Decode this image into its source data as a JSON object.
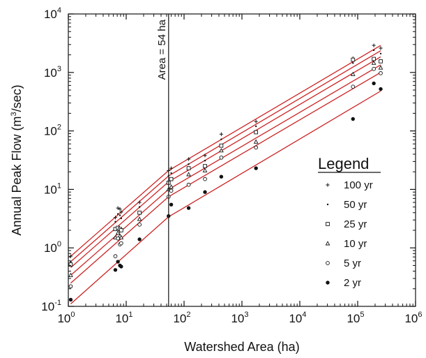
{
  "chart_data": {
    "type": "scatter",
    "xlabel": "Watershed Area (ha)",
    "ylabel_main": "Annual Peak Flow (m",
    "ylabel_sup": "3",
    "ylabel_end": "/sec)",
    "xscale": "log",
    "yscale": "log",
    "xlim": [
      1,
      1000000
    ],
    "ylim": [
      0.1,
      10000
    ],
    "x_ticks": [
      {
        "base": "10",
        "exp": "0"
      },
      {
        "base": "10",
        "exp": "1"
      },
      {
        "base": "10",
        "exp": "2"
      },
      {
        "base": "10",
        "exp": "3"
      },
      {
        "base": "10",
        "exp": "4"
      },
      {
        "base": "10",
        "exp": "5"
      },
      {
        "base": "10",
        "exp": "6"
      }
    ],
    "y_ticks": [
      {
        "base": "10",
        "exp": "-1"
      },
      {
        "base": "10",
        "exp": "0"
      },
      {
        "base": "10",
        "exp": "1"
      },
      {
        "base": "10",
        "exp": "2"
      },
      {
        "base": "10",
        "exp": "3"
      },
      {
        "base": "10",
        "exp": "4"
      }
    ],
    "grid": false,
    "reference_line": {
      "x": 54,
      "label": "Area = 54 ha"
    },
    "legend": {
      "title": "Legend",
      "position": "right"
    },
    "fit_color": "#cc2222",
    "series": [
      {
        "name": "100 yr",
        "marker": "plus",
        "fit": [
          [
            1.1,
            0.72
          ],
          [
            54,
            21
          ],
          [
            250000,
            2900
          ]
        ],
        "points": [
          [
            1.1,
            0.72
          ],
          [
            6.5,
            3.3
          ],
          [
            7.2,
            4.8
          ],
          [
            7.8,
            4.6
          ],
          [
            8.2,
            4.1
          ],
          [
            17,
            6.0
          ],
          [
            54,
            21
          ],
          [
            60,
            23
          ],
          [
            120,
            33
          ],
          [
            230,
            38
          ],
          [
            440,
            88
          ],
          [
            1750,
            145
          ],
          [
            83000,
            1750
          ],
          [
            190000,
            2900
          ],
          [
            250000,
            2600
          ]
        ]
      },
      {
        "name": "50 yr",
        "marker": "dot-small",
        "fit": [
          [
            1.1,
            0.58
          ],
          [
            54,
            17
          ],
          [
            250000,
            2350
          ]
        ],
        "points": [
          [
            1.1,
            0.58
          ],
          [
            6.5,
            2.8
          ],
          [
            7.2,
            3.8
          ],
          [
            7.8,
            3.6
          ],
          [
            8.2,
            3.2
          ],
          [
            17,
            5.0
          ],
          [
            54,
            17
          ],
          [
            60,
            19
          ],
          [
            120,
            27
          ],
          [
            230,
            31
          ],
          [
            440,
            72
          ],
          [
            1750,
            120
          ],
          [
            83000,
            1450
          ],
          [
            190000,
            2400
          ],
          [
            250000,
            2100
          ]
        ]
      },
      {
        "name": "25 yr",
        "marker": "square",
        "fit": [
          [
            1.1,
            0.46
          ],
          [
            54,
            13.5
          ],
          [
            250000,
            1850
          ]
        ],
        "points": [
          [
            1.1,
            0.52
          ],
          [
            6.5,
            2.1
          ],
          [
            7.2,
            2.2
          ],
          [
            7.8,
            2.1
          ],
          [
            8.2,
            2.0
          ],
          [
            17,
            4.0
          ],
          [
            54,
            13
          ],
          [
            60,
            15
          ],
          [
            120,
            23
          ],
          [
            230,
            25
          ],
          [
            440,
            56
          ],
          [
            1750,
            95
          ],
          [
            83000,
            1650
          ],
          [
            190000,
            1700
          ],
          [
            250000,
            1550
          ]
        ]
      },
      {
        "name": "10 yr",
        "marker": "triangle",
        "fit": [
          [
            1.1,
            0.34
          ],
          [
            54,
            10
          ],
          [
            250000,
            1350
          ]
        ],
        "points": [
          [
            1.1,
            0.34
          ],
          [
            6.5,
            1.5
          ],
          [
            7.2,
            1.8
          ],
          [
            7.8,
            1.6
          ],
          [
            8.2,
            1.5
          ],
          [
            17,
            3.1
          ],
          [
            54,
            10
          ],
          [
            60,
            11
          ],
          [
            120,
            18
          ],
          [
            230,
            21
          ],
          [
            440,
            46
          ],
          [
            1750,
            65
          ],
          [
            83000,
            930
          ],
          [
            190000,
            1450
          ],
          [
            250000,
            1200
          ]
        ]
      },
      {
        "name": "5 yr",
        "marker": "circle",
        "fit": [
          [
            1.1,
            0.25
          ],
          [
            54,
            7.5
          ],
          [
            250000,
            1000
          ]
        ],
        "points": [
          [
            1.1,
            0.22
          ],
          [
            6.5,
            0.72
          ],
          [
            7.2,
            1.45
          ],
          [
            7.8,
            1.15
          ],
          [
            8.2,
            1.2
          ],
          [
            17,
            2.5
          ],
          [
            54,
            7.5
          ],
          [
            60,
            9.5
          ],
          [
            120,
            12
          ],
          [
            230,
            15
          ],
          [
            440,
            35
          ],
          [
            1750,
            52
          ],
          [
            83000,
            570
          ],
          [
            190000,
            1150
          ],
          [
            250000,
            970
          ]
        ]
      },
      {
        "name": "2 yr",
        "marker": "dot",
        "fit": [
          [
            1.1,
            0.11
          ],
          [
            54,
            3.4
          ],
          [
            250000,
            480
          ]
        ],
        "points": [
          [
            1.1,
            0.13
          ],
          [
            6.5,
            0.42
          ],
          [
            7.2,
            0.58
          ],
          [
            7.8,
            0.5
          ],
          [
            8.2,
            0.48
          ],
          [
            17,
            1.4
          ],
          [
            54,
            3.5
          ],
          [
            60,
            5.5
          ],
          [
            120,
            4.8
          ],
          [
            230,
            9
          ],
          [
            440,
            16.5
          ],
          [
            1750,
            23
          ],
          [
            83000,
            160
          ],
          [
            190000,
            650
          ],
          [
            250000,
            520
          ]
        ]
      }
    ]
  }
}
